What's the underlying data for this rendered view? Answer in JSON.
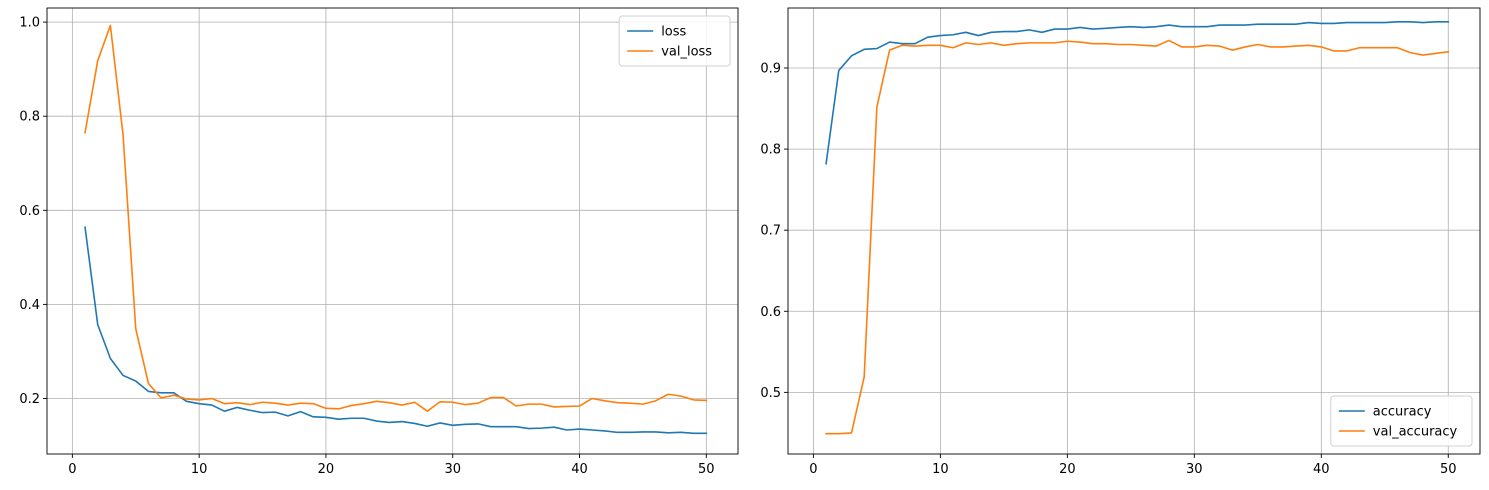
{
  "chart_data": [
    {
      "type": "line",
      "x": [
        1,
        2,
        3,
        4,
        5,
        6,
        7,
        8,
        9,
        10,
        11,
        12,
        13,
        14,
        15,
        16,
        17,
        18,
        19,
        20,
        21,
        22,
        23,
        24,
        25,
        26,
        27,
        28,
        29,
        30,
        31,
        32,
        33,
        34,
        35,
        36,
        37,
        38,
        39,
        40,
        41,
        42,
        43,
        44,
        45,
        46,
        47,
        48,
        49,
        50
      ],
      "series": [
        {
          "name": "loss",
          "color": "#1f77b4",
          "values": [
            0.564,
            0.357,
            0.285,
            0.249,
            0.237,
            0.215,
            0.212,
            0.212,
            0.194,
            0.189,
            0.186,
            0.173,
            0.181,
            0.175,
            0.17,
            0.171,
            0.163,
            0.172,
            0.161,
            0.16,
            0.156,
            0.158,
            0.158,
            0.152,
            0.149,
            0.151,
            0.147,
            0.141,
            0.148,
            0.143,
            0.145,
            0.146,
            0.14,
            0.14,
            0.14,
            0.136,
            0.137,
            0.139,
            0.133,
            0.135,
            0.133,
            0.131,
            0.128,
            0.128,
            0.129,
            0.129,
            0.127,
            0.128,
            0.126,
            0.126
          ]
        },
        {
          "name": "val_loss",
          "color": "#ff7f0e",
          "values": [
            0.765,
            0.918,
            0.993,
            0.76,
            0.348,
            0.232,
            0.201,
            0.207,
            0.199,
            0.197,
            0.2,
            0.189,
            0.191,
            0.187,
            0.192,
            0.19,
            0.186,
            0.19,
            0.189,
            0.179,
            0.178,
            0.185,
            0.189,
            0.194,
            0.191,
            0.186,
            0.192,
            0.173,
            0.193,
            0.192,
            0.187,
            0.19,
            0.202,
            0.202,
            0.184,
            0.188,
            0.188,
            0.182,
            0.183,
            0.184,
            0.2,
            0.195,
            0.191,
            0.19,
            0.188,
            0.195,
            0.209,
            0.205,
            0.197,
            0.196
          ]
        }
      ],
      "xlim": [
        -2.0,
        52.5
      ],
      "ylim": [
        0.082,
        1.03
      ],
      "xticks": [
        0,
        10,
        20,
        30,
        40,
        50
      ],
      "xtick_labels": [
        "0",
        "10",
        "20",
        "30",
        "40",
        "50"
      ],
      "yticks": [
        0.2,
        0.4,
        0.6,
        0.8,
        1.0
      ],
      "ytick_labels": [
        "0.2",
        "0.4",
        "0.6",
        "0.8",
        "1.0"
      ],
      "grid": true,
      "legend_position": "top-right",
      "title": "",
      "xlabel": "",
      "ylabel": ""
    },
    {
      "type": "line",
      "x": [
        1,
        2,
        3,
        4,
        5,
        6,
        7,
        8,
        9,
        10,
        11,
        12,
        13,
        14,
        15,
        16,
        17,
        18,
        19,
        20,
        21,
        22,
        23,
        24,
        25,
        26,
        27,
        28,
        29,
        30,
        31,
        32,
        33,
        34,
        35,
        36,
        37,
        38,
        39,
        40,
        41,
        42,
        43,
        44,
        45,
        46,
        47,
        48,
        49,
        50
      ],
      "series": [
        {
          "name": "accuracy",
          "color": "#1f77b4",
          "values": [
            0.782,
            0.897,
            0.915,
            0.923,
            0.924,
            0.932,
            0.93,
            0.93,
            0.938,
            0.94,
            0.941,
            0.944,
            0.94,
            0.944,
            0.945,
            0.945,
            0.947,
            0.944,
            0.948,
            0.948,
            0.95,
            0.948,
            0.949,
            0.95,
            0.951,
            0.95,
            0.951,
            0.953,
            0.951,
            0.951,
            0.951,
            0.953,
            0.953,
            0.953,
            0.954,
            0.954,
            0.954,
            0.954,
            0.956,
            0.955,
            0.955,
            0.956,
            0.956,
            0.956,
            0.956,
            0.957,
            0.957,
            0.956,
            0.957,
            0.957
          ]
        },
        {
          "name": "val_accuracy",
          "color": "#ff7f0e",
          "values": [
            0.449,
            0.449,
            0.45,
            0.519,
            0.852,
            0.922,
            0.928,
            0.927,
            0.928,
            0.928,
            0.925,
            0.931,
            0.929,
            0.931,
            0.928,
            0.93,
            0.931,
            0.931,
            0.931,
            0.933,
            0.932,
            0.93,
            0.93,
            0.929,
            0.929,
            0.928,
            0.927,
            0.934,
            0.926,
            0.926,
            0.928,
            0.927,
            0.922,
            0.926,
            0.929,
            0.926,
            0.926,
            0.927,
            0.928,
            0.926,
            0.921,
            0.921,
            0.925,
            0.925,
            0.925,
            0.925,
            0.919,
            0.916,
            0.918,
            0.92
          ]
        }
      ],
      "xlim": [
        -2.0,
        52.5
      ],
      "ylim": [
        0.424,
        0.974
      ],
      "xticks": [
        0,
        10,
        20,
        30,
        40,
        50
      ],
      "xtick_labels": [
        "0",
        "10",
        "20",
        "30",
        "40",
        "50"
      ],
      "yticks": [
        0.5,
        0.6,
        0.7,
        0.8,
        0.9
      ],
      "ytick_labels": [
        "0.5",
        "0.6",
        "0.7",
        "0.8",
        "0.9"
      ],
      "grid": true,
      "legend_position": "bottom-right",
      "title": "",
      "xlabel": "",
      "ylabel": ""
    }
  ],
  "style": {
    "grid_color": "#b0b0b0",
    "axis_color": "#000000",
    "legend_border_color": "#d0d0d0"
  }
}
